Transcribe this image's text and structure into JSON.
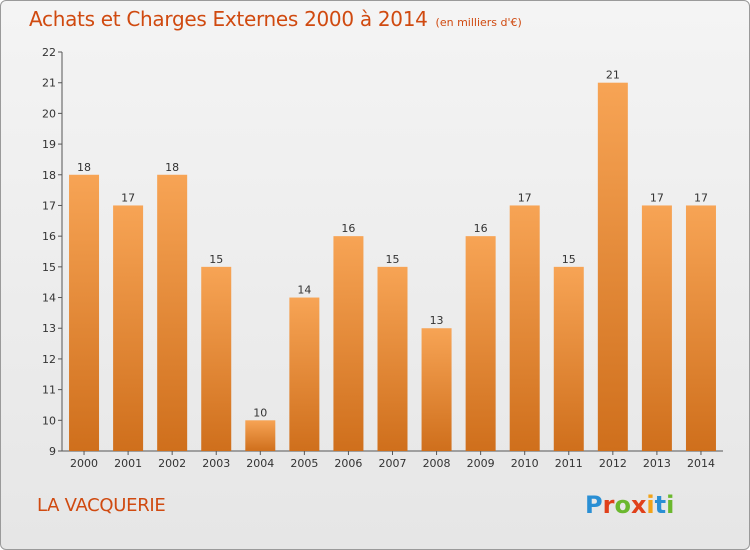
{
  "header": {
    "title": "Achats et Charges Externes 2000 à 2014",
    "unit": "(en milliers d'€)"
  },
  "footer": {
    "place": "LA VACQUERIE",
    "logo_text": "Proxiti",
    "logo_colors": [
      "#2a8fd4",
      "#e0401a",
      "#6bb82e",
      "#e0401a",
      "#f2a318",
      "#2a8fd4",
      "#6bb82e"
    ]
  },
  "colors": {
    "title": "#d04a10",
    "bar_light": "#f7a455",
    "bar_dark": "#cf6f1c",
    "axis": "#555555"
  },
  "chart_data": {
    "type": "bar",
    "title": "Achats et Charges Externes 2000 à 2014",
    "xlabel": "",
    "ylabel": "",
    "categories": [
      "2000",
      "2001",
      "2002",
      "2003",
      "2004",
      "2005",
      "2006",
      "2007",
      "2008",
      "2009",
      "2010",
      "2011",
      "2012",
      "2013",
      "2014"
    ],
    "values": [
      18,
      17,
      18,
      15,
      10,
      14,
      16,
      15,
      13,
      16,
      17,
      15,
      21,
      17,
      17
    ],
    "ylim": [
      9,
      22
    ],
    "yticks": [
      9,
      10,
      11,
      12,
      13,
      14,
      15,
      16,
      17,
      18,
      19,
      20,
      21,
      22
    ],
    "grid": false
  }
}
